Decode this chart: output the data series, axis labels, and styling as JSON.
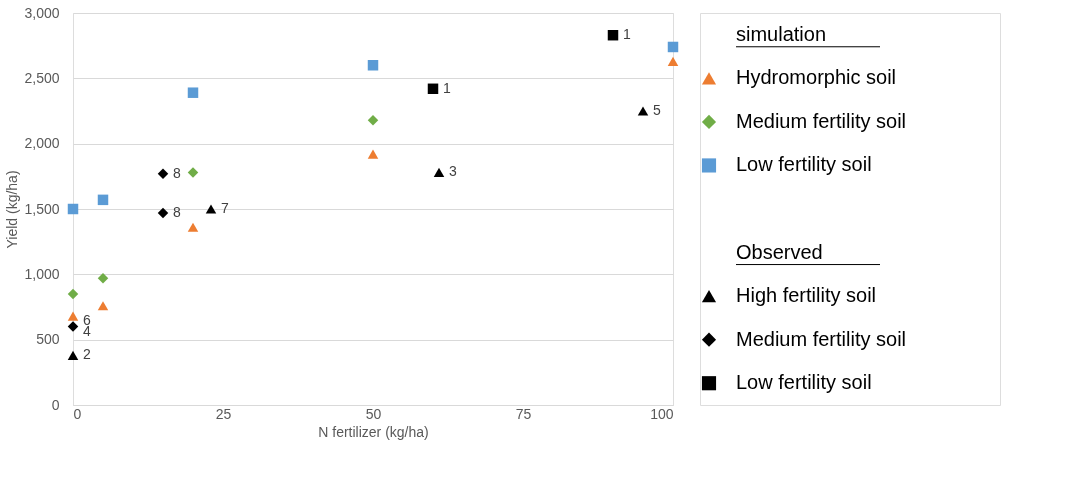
{
  "chart_data": {
    "type": "scatter",
    "xlabel": "N fertilizer (kg/ha)",
    "ylabel": "Yield (kg/ha)",
    "xlim": [
      0,
      100
    ],
    "xticks": [
      0,
      25,
      50,
      75,
      100
    ],
    "ylim": [
      0,
      3000
    ],
    "yticks": [
      0,
      {
        "value": 500,
        "label": "500"
      },
      {
        "value": 1000,
        "label": "1,000"
      },
      {
        "value": 1500,
        "label": "1,500"
      },
      {
        "value": 2000,
        "label": "2,000"
      },
      {
        "value": 2500,
        "label": "2,500"
      },
      {
        "value": 3000,
        "label": "3,000"
      }
    ],
    "grid": "y",
    "legend": "right",
    "legend_title": [
      "simulation",
      "Observed"
    ],
    "series": [
      {
        "name": "Hydromorphic soil",
        "color": "#ed7d31",
        "marker": "triangle",
        "x": [
          0,
          5,
          20,
          50,
          100
        ],
        "values": [
          680,
          760,
          1360,
          1920,
          2630
        ]
      },
      {
        "name": "Medium fertility soil",
        "color": "#70ad47",
        "marker": "diamond",
        "x": [
          0,
          5,
          20,
          50
        ],
        "values": [
          850,
          970,
          1780,
          2180
        ]
      },
      {
        "name": "Low fertility soil",
        "color": "#5b9bd5",
        "marker": "square",
        "x": [
          0,
          5,
          20,
          50,
          100
        ],
        "values": [
          1500,
          1570,
          2390,
          2600,
          2740
        ]
      },
      {
        "name": "High fertility soil",
        "color": "#000000",
        "marker": "triangle",
        "x": [
          0,
          23,
          61,
          95
        ],
        "values": [
          380,
          1500,
          1780,
          2250
        ]
      },
      {
        "name": "Medium fertility soil",
        "color": "#000000",
        "marker": "diamond",
        "x": [
          0,
          15,
          15
        ],
        "values": [
          600,
          1470,
          1770
        ]
      },
      {
        "name": "Low fertility soil",
        "color": "#000000",
        "marker": "square",
        "x": [
          60,
          90
        ],
        "values": [
          2420,
          2830
        ]
      }
    ],
    "annotations": [
      {
        "text": "2",
        "x": 0,
        "y": 380
      },
      {
        "text": "6",
        "x": 0,
        "y": 640
      },
      {
        "text": "4",
        "x": 0,
        "y": 560
      },
      {
        "text": "8",
        "x": 15,
        "y": 1470
      },
      {
        "text": "8",
        "x": 15,
        "y": 1770
      },
      {
        "text": "7",
        "x": 23,
        "y": 1500
      },
      {
        "text": "3",
        "x": 61,
        "y": 1780
      },
      {
        "text": "1",
        "x": 60,
        "y": 2420
      },
      {
        "text": "1",
        "x": 90,
        "y": 2830
      },
      {
        "text": "5",
        "x": 95,
        "y": 2250
      }
    ]
  }
}
